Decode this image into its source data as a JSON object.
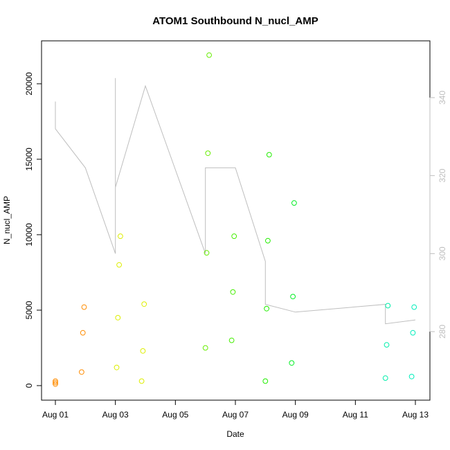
{
  "chart_data": {
    "type": "scatter",
    "title": "ATOM1 Southbound N_nucl_AMP",
    "xlabel": "Date",
    "ylabel": "N_nucl_AMP",
    "x_axis": {
      "type": "date",
      "range": [
        "2015-08-01",
        "2015-08-13"
      ],
      "ticks": [
        "2015-08-01",
        "2015-08-03",
        "2015-08-05",
        "2015-08-07",
        "2015-08-09",
        "2015-08-11",
        "2015-08-13"
      ],
      "tick_labels": [
        "Aug 01",
        "Aug 03",
        "Aug 05",
        "Aug 07",
        "Aug 09",
        "Aug 11",
        "Aug 13"
      ]
    },
    "y_axis": {
      "range": [
        0,
        22000
      ],
      "ticks": [
        0,
        5000,
        10000,
        15000,
        20000
      ],
      "tick_labels": [
        "0",
        "5000",
        "10000",
        "15000",
        "20000"
      ]
    },
    "y2_axis": {
      "range": [
        263,
        351
      ],
      "ticks": [
        280,
        300,
        320,
        340
      ],
      "tick_labels": [
        "280",
        "300",
        "320",
        "340"
      ],
      "color": "#bebebe"
    },
    "grid": false,
    "legend": "none",
    "series": [
      {
        "color": "#ff8c00",
        "x": [
          "2015-08-01",
          "2015-08-01",
          "2015-08-01"
        ],
        "y": [
          100,
          200,
          300
        ]
      },
      {
        "color": "#ff8c00",
        "x": [
          "2015-08-01 21:00",
          "2015-08-01 22:00",
          "2015-08-01 23:00"
        ],
        "y": [
          900,
          3500,
          5200
        ]
      },
      {
        "color": "#ddee00",
        "x": [
          "2015-08-03 01:00",
          "2015-08-03 02:00",
          "2015-08-03 03:00",
          "2015-08-03 04:00"
        ],
        "y": [
          1200,
          4500,
          8000,
          9900
        ]
      },
      {
        "color": "#ddee00",
        "x": [
          "2015-08-03 21:00",
          "2015-08-03 22:00",
          "2015-08-03 23:00"
        ],
        "y": [
          300,
          2300,
          5400
        ]
      },
      {
        "color": "#66ee00",
        "x": [
          "2015-08-06 00:00",
          "2015-08-06 01:00",
          "2015-08-06 02:00",
          "2015-08-06 03:00"
        ],
        "y": [
          2500,
          8800,
          15400,
          21900
        ]
      },
      {
        "color": "#44ee00",
        "x": [
          "2015-08-06 21:00",
          "2015-08-06 22:00",
          "2015-08-06 23:00"
        ],
        "y": [
          3000,
          6200,
          9900
        ]
      },
      {
        "color": "#22ee00",
        "x": [
          "2015-08-08 00:00",
          "2015-08-08 01:00",
          "2015-08-08 02:00",
          "2015-08-08 03:00"
        ],
        "y": [
          300,
          5100,
          9600,
          15300
        ]
      },
      {
        "color": "#00ee22",
        "x": [
          "2015-08-08 21:00",
          "2015-08-08 22:00",
          "2015-08-08 23:00"
        ],
        "y": [
          1500,
          5900,
          12100
        ]
      },
      {
        "color": "#00eeaa",
        "x": [
          "2015-08-12 00:00",
          "2015-08-12 01:00",
          "2015-08-12 02:00"
        ],
        "y": [
          500,
          2700,
          5300
        ]
      },
      {
        "color": "#00eebb",
        "x": [
          "2015-08-12 21:00",
          "2015-08-12 22:00",
          "2015-08-12 23:00"
        ],
        "y": [
          600,
          3500,
          5200
        ]
      }
    ],
    "y2_line": {
      "color": "#bebebe",
      "x": [
        "2015-08-01",
        "2015-08-01",
        "2015-08-02",
        "2015-08-03",
        "2015-08-03",
        "2015-08-03",
        "2015-08-04",
        "2015-08-06",
        "2015-08-06",
        "2015-08-07",
        "2015-08-08",
        "2015-08-08",
        "2015-08-09",
        "2015-08-12",
        "2015-08-12",
        "2015-08-13"
      ],
      "y": [
        339,
        332,
        322,
        300,
        345,
        317,
        343,
        300,
        322,
        322,
        298,
        287,
        285,
        287,
        282,
        283
      ]
    }
  }
}
